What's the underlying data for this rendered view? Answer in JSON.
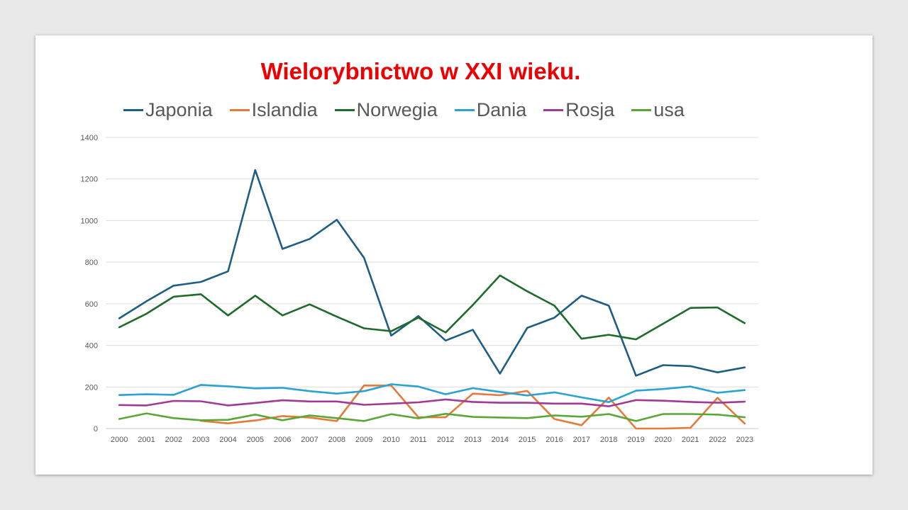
{
  "chart_data": {
    "type": "line",
    "title": "Wielorybnictwo w XXI wieku.",
    "xlabel": "",
    "ylabel": "",
    "ylim": [
      0,
      1400
    ],
    "yticks": [
      0,
      200,
      400,
      600,
      800,
      1000,
      1200,
      1400
    ],
    "grid": true,
    "legend_position": "top",
    "x": [
      "2000",
      "2001",
      "2002",
      "2003",
      "2004",
      "2005",
      "2006",
      "2007",
      "2008",
      "2009",
      "2010",
      "2011",
      "2012",
      "2013",
      "2014",
      "2015",
      "2016",
      "2017",
      "2018",
      "2019",
      "2020",
      "2021",
      "2022",
      "2023"
    ],
    "series": [
      {
        "name": "Japonia",
        "color": "#1f5e84",
        "values": [
          530,
          612,
          687,
          705,
          756,
          1243,
          864,
          912,
          1004,
          821,
          447,
          541,
          423,
          475,
          264,
          484,
          533,
          639,
          591,
          254,
          305,
          300,
          270,
          294
        ]
      },
      {
        "name": "Islandia",
        "color": "#e57a3b",
        "values": [
          null,
          null,
          null,
          37,
          25,
          39,
          60,
          53,
          36,
          207,
          207,
          54,
          54,
          168,
          160,
          181,
          46,
          16,
          149,
          0,
          0,
          3,
          148,
          24
        ]
      },
      {
        "name": "Norwegia",
        "color": "#1e6b2b",
        "values": [
          487,
          552,
          634,
          646,
          544,
          639,
          544,
          597,
          538,
          482,
          468,
          533,
          462,
          594,
          736,
          660,
          591,
          432,
          451,
          429,
          504,
          580,
          582,
          507
        ]
      },
      {
        "name": "Dania",
        "color": "#2ba2d2",
        "values": [
          161,
          165,
          162,
          210,
          203,
          193,
          196,
          180,
          168,
          180,
          213,
          202,
          165,
          194,
          176,
          159,
          174,
          150,
          127,
          182,
          190,
          202,
          172,
          185
        ]
      },
      {
        "name": "Rosja",
        "color": "#a03a98",
        "values": [
          113,
          111,
          133,
          131,
          111,
          123,
          136,
          130,
          130,
          114,
          120,
          126,
          140,
          128,
          124,
          124,
          120,
          120,
          107,
          137,
          134,
          128,
          124,
          129
        ]
      },
      {
        "name": "usa",
        "color": "#58a838",
        "values": [
          46,
          73,
          50,
          40,
          42,
          67,
          40,
          63,
          50,
          36,
          69,
          49,
          71,
          56,
          53,
          50,
          63,
          57,
          70,
          36,
          70,
          70,
          67,
          54
        ]
      }
    ]
  }
}
